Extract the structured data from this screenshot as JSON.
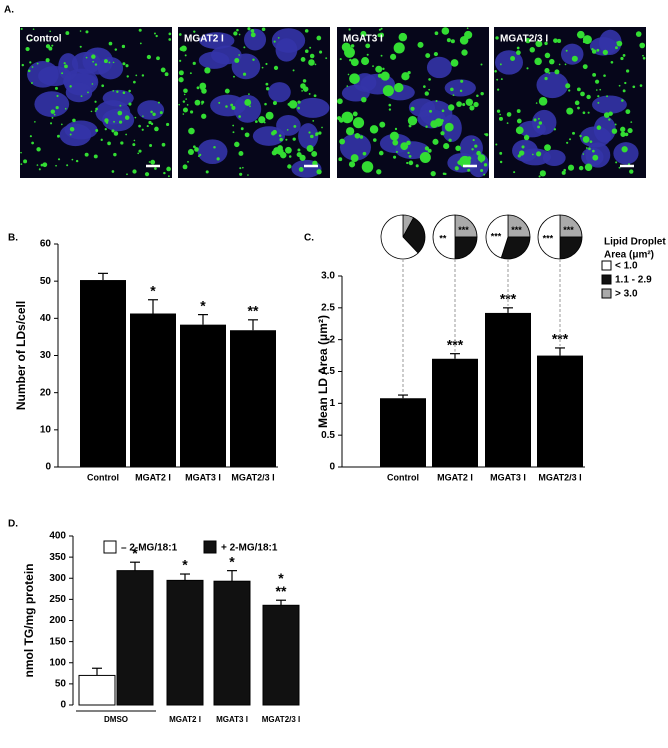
{
  "panel_a": {
    "label": "A.",
    "images": [
      "Control",
      "MGAT2 I",
      "MGAT3 I",
      "MGAT2/3 I"
    ]
  },
  "chart_data": [
    {
      "type": "bar",
      "label": "B.",
      "y_label": "Number of LDs/cell",
      "categories": [
        "Control",
        "MGAT2 I",
        "MGAT3 I",
        "MGAT2/3 I"
      ],
      "values": [
        50.3,
        41.3,
        38.3,
        36.8
      ],
      "errors": [
        1.8,
        3.7,
        2.7,
        2.8
      ],
      "significance": [
        null,
        "*",
        "*",
        "**"
      ],
      "color": "#000000",
      "ylim": [
        0,
        60
      ],
      "yticks": [
        0,
        10,
        20,
        30,
        40,
        50,
        60
      ]
    },
    {
      "type": "bar",
      "label": "C.",
      "y_label": "Mean LD Area (μm²)",
      "categories": [
        "Control",
        "MGAT2 I",
        "MGAT3 I",
        "MGAT2/3 I"
      ],
      "values": [
        1.08,
        1.7,
        2.42,
        1.75
      ],
      "errors": [
        0.05,
        0.08,
        0.08,
        0.12
      ],
      "significance": [
        null,
        "***",
        "***",
        "***"
      ],
      "color": "#000000",
      "ylim": [
        0,
        3
      ],
      "yticks": [
        0,
        0.5,
        1,
        1.5,
        2,
        2.5,
        {
          "value": 3,
          "label": "3.0"
        }
      ],
      "pies": {
        "legend_title": [
          "Lipid Droplet",
          "Area (μm²)"
        ],
        "series": [
          {
            "name": "< 1.0",
            "color": "#ffffff",
            "values": [
              62,
              50,
              45,
              50
            ],
            "significance": [
              null,
              "**",
              "***",
              "***"
            ]
          },
          {
            "name": "1.1 - 2.9",
            "color": "#111111",
            "values": [
              30,
              25,
              30,
              25
            ]
          },
          {
            "name": "> 3.0",
            "color": "#aaaaaa",
            "values": [
              8,
              25,
              25,
              25
            ],
            "significance": [
              null,
              "***",
              "***",
              "***"
            ]
          }
        ]
      }
    },
    {
      "type": "grouped_bar",
      "label": "D.",
      "y_label": "nmol TG/mg protein",
      "categories": [
        "DMSO",
        "MGAT2 I",
        "MGAT3 I",
        "MGAT2/3 I"
      ],
      "series": [
        {
          "name": "– 2-MG/18:1",
          "color": "#ffffff",
          "values": [
            70,
            null,
            null,
            null
          ],
          "errors": [
            17,
            null,
            null,
            null
          ]
        },
        {
          "name": "+ 2-MG/18:1",
          "color": "#111111",
          "values": [
            318,
            295,
            293,
            236
          ],
          "errors": [
            20,
            15,
            25,
            12
          ],
          "significance": [
            [
              "*"
            ],
            [
              "*"
            ],
            [
              "*"
            ],
            [
              "*",
              "**"
            ]
          ]
        }
      ],
      "ylim": [
        0,
        400
      ],
      "yticks": [
        0,
        50,
        100,
        150,
        200,
        250,
        300,
        350,
        400
      ]
    }
  ]
}
